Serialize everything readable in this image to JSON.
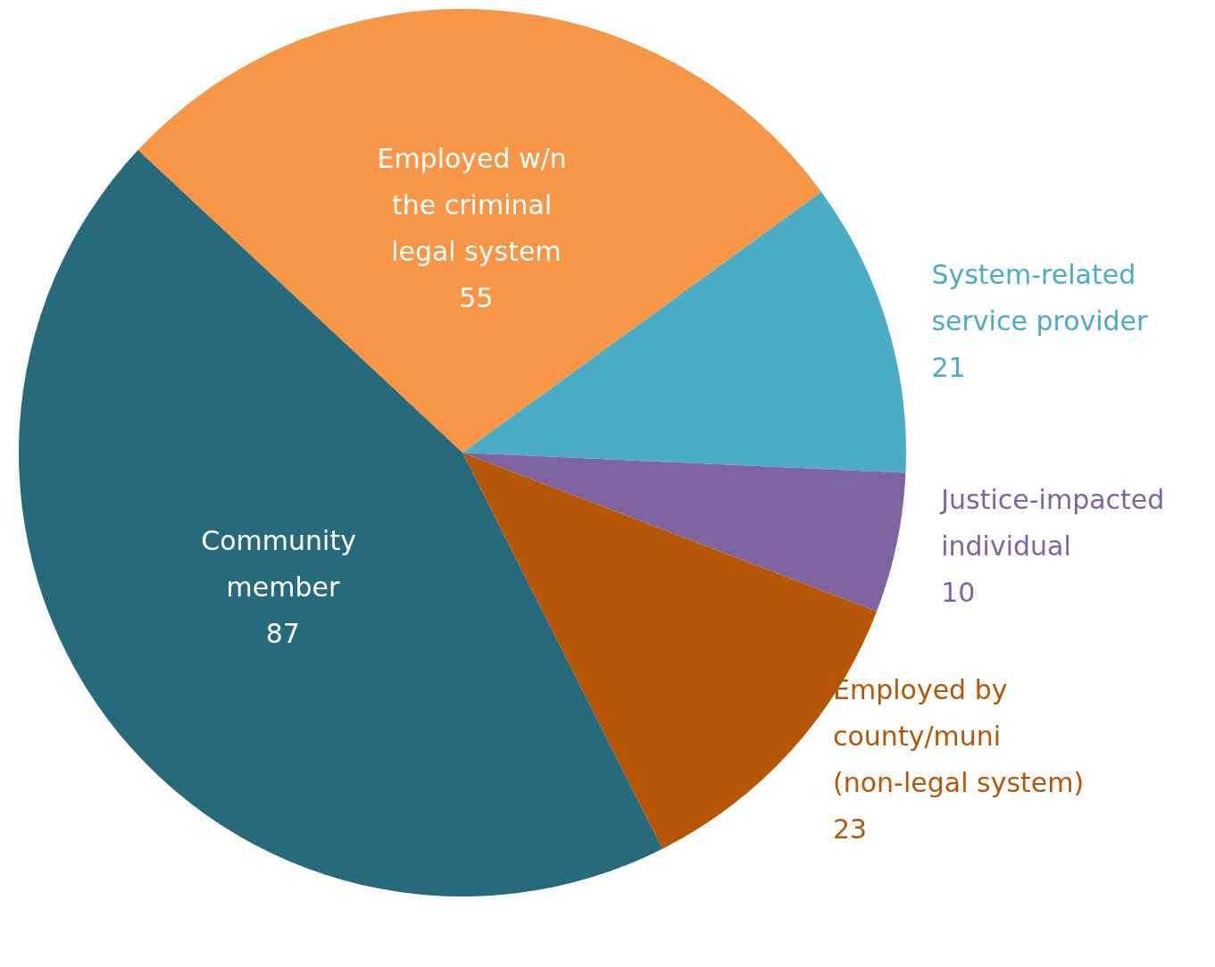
{
  "chart_data": {
    "type": "pie",
    "categories": [
      "Employed w/n the criminal legal system",
      "System-related service provider",
      "Justice-impacted individual",
      "Employed by county/muni (non-legal system)",
      "Community member"
    ],
    "values": [
      55,
      21,
      10,
      23,
      87
    ],
    "colors": [
      "#f79646",
      "#4bacc6",
      "#8064a2",
      "#b65708",
      "#276a7c"
    ],
    "data_labels": true,
    "legend": false
  }
}
